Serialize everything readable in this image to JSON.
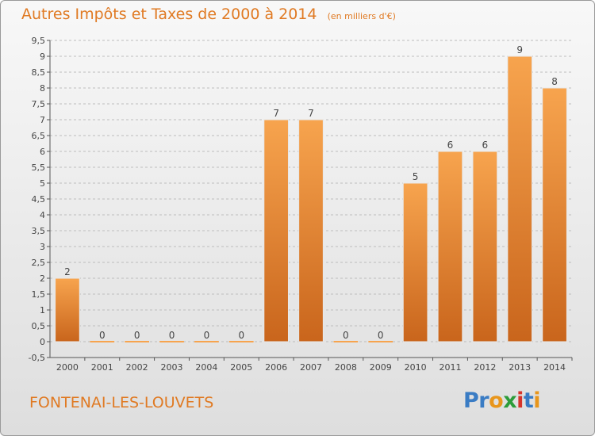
{
  "chart_data": {
    "type": "bar",
    "title": "Autres Impôts et Taxes de 2000 à 2014",
    "unit": "(en milliers d'€)",
    "categories": [
      "2000",
      "2001",
      "2002",
      "2003",
      "2004",
      "2005",
      "2006",
      "2007",
      "2008",
      "2009",
      "2010",
      "2011",
      "2012",
      "2013",
      "2014"
    ],
    "values": [
      2,
      0,
      0,
      0,
      0,
      0,
      7,
      7,
      0,
      0,
      5,
      6,
      6,
      9,
      8
    ],
    "data_labels": [
      "2",
      "0",
      "0",
      "0",
      "0",
      "0",
      "7",
      "7",
      "0",
      "0",
      "5",
      "6",
      "6",
      "9",
      "8"
    ],
    "ylim": [
      -0.5,
      9.5
    ],
    "yticks": [
      -0.5,
      0,
      0.5,
      1,
      1.5,
      2,
      2.5,
      3,
      3.5,
      4,
      4.5,
      5,
      5.5,
      6,
      6.5,
      7,
      7.5,
      8,
      8.5,
      9,
      9.5
    ],
    "ytick_labels": [
      "-0,5",
      "0",
      "0,5",
      "1",
      "1,5",
      "2",
      "2,5",
      "3",
      "3,5",
      "4",
      "4,5",
      "5",
      "5,5",
      "6",
      "6,5",
      "7",
      "7,5",
      "8",
      "8,5",
      "9",
      "9,5"
    ],
    "xlabel": "",
    "ylabel": "",
    "grid": "horizontal dashed",
    "legend": "none"
  },
  "colors": {
    "title": "#e07a23",
    "bar_top": "#f7a44e",
    "bar_bottom": "#c9651c",
    "grid": "#bdbdbd",
    "axis": "#555555",
    "tick_text": "#444444"
  },
  "footer": {
    "commune": "FONTENAI-LES-LOUVETS",
    "logo_letters": [
      {
        "ch": "P",
        "color": "#3a7cc4"
      },
      {
        "ch": "r",
        "color": "#3a7cc4"
      },
      {
        "ch": "o",
        "color": "#e8961c"
      },
      {
        "ch": "x",
        "color": "#2d9c3a"
      },
      {
        "ch": "i",
        "color": "#d6342b"
      },
      {
        "ch": "t",
        "color": "#3a7cc4"
      },
      {
        "ch": "i",
        "color": "#e8961c"
      }
    ]
  }
}
